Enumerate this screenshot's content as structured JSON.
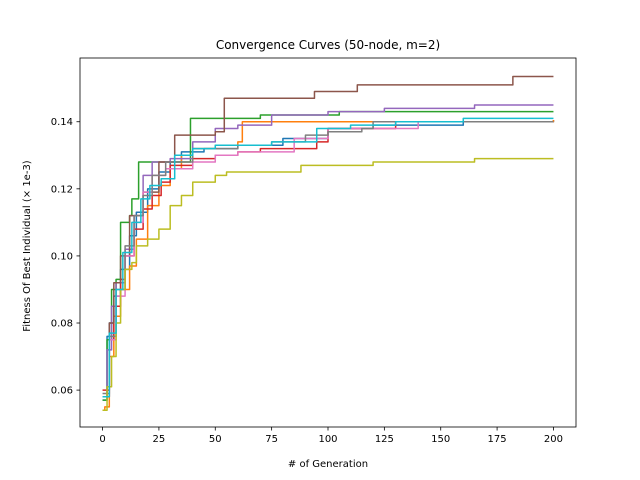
{
  "chart_data": {
    "type": "line",
    "title": "Convergence Curves (50-node, m=2)",
    "xlabel": "# of Generation",
    "ylabel": "Fitness Of Best Individual (× 1e-3)",
    "xlim": [
      -10,
      210
    ],
    "ylim": [
      0.049,
      0.159
    ],
    "xticks": [
      0,
      25,
      50,
      75,
      100,
      125,
      150,
      175,
      200
    ],
    "yticks": [
      0.06,
      0.08,
      0.1,
      0.12,
      0.14
    ],
    "ytick_labels": [
      "0.06",
      "0.08",
      "0.10",
      "0.12",
      "0.14"
    ],
    "grid": false,
    "legend": false,
    "series": [
      {
        "color": "#1f77b4",
        "points": [
          [
            0,
            0.057
          ],
          [
            2,
            0.076
          ],
          [
            3,
            0.08
          ],
          [
            5,
            0.088
          ],
          [
            8,
            0.096
          ],
          [
            12,
            0.106
          ],
          [
            15,
            0.113
          ],
          [
            20,
            0.12
          ],
          [
            25,
            0.125
          ],
          [
            30,
            0.128
          ],
          [
            35,
            0.131
          ],
          [
            45,
            0.132
          ],
          [
            60,
            0.133
          ],
          [
            80,
            0.135
          ],
          [
            100,
            0.138
          ],
          [
            120,
            0.139
          ],
          [
            160,
            0.14
          ],
          [
            200,
            0.1405
          ]
        ]
      },
      {
        "color": "#ff7f0e",
        "points": [
          [
            0,
            0.054
          ],
          [
            1,
            0.055
          ],
          [
            3,
            0.07
          ],
          [
            5,
            0.082
          ],
          [
            8,
            0.09
          ],
          [
            12,
            0.097
          ],
          [
            15,
            0.105
          ],
          [
            20,
            0.115
          ],
          [
            25,
            0.121
          ],
          [
            30,
            0.126
          ],
          [
            35,
            0.13
          ],
          [
            40,
            0.132
          ],
          [
            50,
            0.133
          ],
          [
            60,
            0.134
          ],
          [
            62,
            0.14
          ],
          [
            80,
            0.14
          ],
          [
            110,
            0.14
          ],
          [
            200,
            0.1405
          ]
        ]
      },
      {
        "color": "#2ca02c",
        "points": [
          [
            0,
            0.057
          ],
          [
            2,
            0.075
          ],
          [
            4,
            0.09
          ],
          [
            6,
            0.093
          ],
          [
            8,
            0.11
          ],
          [
            12,
            0.112
          ],
          [
            13,
            0.117
          ],
          [
            15,
            0.117
          ],
          [
            16,
            0.128
          ],
          [
            25,
            0.128
          ],
          [
            38,
            0.128
          ],
          [
            39,
            0.141
          ],
          [
            55,
            0.141
          ],
          [
            60,
            0.141
          ],
          [
            70,
            0.142
          ],
          [
            105,
            0.143
          ],
          [
            150,
            0.143
          ],
          [
            200,
            0.143
          ]
        ]
      },
      {
        "color": "#d62728",
        "points": [
          [
            0,
            0.06
          ],
          [
            3,
            0.075
          ],
          [
            5,
            0.085
          ],
          [
            8,
            0.093
          ],
          [
            10,
            0.1
          ],
          [
            14,
            0.108
          ],
          [
            18,
            0.114
          ],
          [
            22,
            0.118
          ],
          [
            26,
            0.122
          ],
          [
            30,
            0.127
          ],
          [
            40,
            0.129
          ],
          [
            50,
            0.13
          ],
          [
            60,
            0.131
          ],
          [
            70,
            0.132
          ],
          [
            90,
            0.132
          ],
          [
            95,
            0.134
          ],
          [
            100,
            0.138
          ],
          [
            130,
            0.14
          ],
          [
            200,
            0.14
          ]
        ]
      },
      {
        "color": "#9467bd",
        "points": [
          [
            0,
            0.058
          ],
          [
            2,
            0.072
          ],
          [
            4,
            0.085
          ],
          [
            6,
            0.092
          ],
          [
            10,
            0.102
          ],
          [
            14,
            0.112
          ],
          [
            18,
            0.124
          ],
          [
            22,
            0.128
          ],
          [
            30,
            0.129
          ],
          [
            40,
            0.134
          ],
          [
            50,
            0.138
          ],
          [
            60,
            0.139
          ],
          [
            75,
            0.142
          ],
          [
            90,
            0.142
          ],
          [
            100,
            0.143
          ],
          [
            125,
            0.144
          ],
          [
            165,
            0.145
          ],
          [
            200,
            0.145
          ]
        ]
      },
      {
        "color": "#8c564b",
        "points": [
          [
            0,
            0.058
          ],
          [
            3,
            0.08
          ],
          [
            5,
            0.092
          ],
          [
            8,
            0.1
          ],
          [
            12,
            0.112
          ],
          [
            18,
            0.119
          ],
          [
            25,
            0.128
          ],
          [
            32,
            0.136
          ],
          [
            40,
            0.136
          ],
          [
            50,
            0.137
          ],
          [
            54,
            0.147
          ],
          [
            70,
            0.147
          ],
          [
            92,
            0.147
          ],
          [
            94,
            0.149
          ],
          [
            112,
            0.149
          ],
          [
            113,
            0.151
          ],
          [
            180,
            0.151
          ],
          [
            182,
            0.1535
          ],
          [
            200,
            0.1535
          ]
        ]
      },
      {
        "color": "#e377c2",
        "points": [
          [
            0,
            0.058
          ],
          [
            3,
            0.075
          ],
          [
            6,
            0.088
          ],
          [
            10,
            0.1
          ],
          [
            14,
            0.11
          ],
          [
            18,
            0.119
          ],
          [
            22,
            0.124
          ],
          [
            28,
            0.126
          ],
          [
            40,
            0.128
          ],
          [
            50,
            0.13
          ],
          [
            60,
            0.131
          ],
          [
            75,
            0.131
          ],
          [
            85,
            0.135
          ],
          [
            100,
            0.138
          ],
          [
            120,
            0.138
          ],
          [
            140,
            0.14
          ],
          [
            200,
            0.14
          ]
        ]
      },
      {
        "color": "#7f7f7f",
        "points": [
          [
            0,
            0.059
          ],
          [
            3,
            0.076
          ],
          [
            6,
            0.09
          ],
          [
            10,
            0.103
          ],
          [
            14,
            0.112
          ],
          [
            18,
            0.118
          ],
          [
            22,
            0.124
          ],
          [
            28,
            0.128
          ],
          [
            40,
            0.132
          ],
          [
            50,
            0.132
          ],
          [
            60,
            0.133
          ],
          [
            75,
            0.134
          ],
          [
            85,
            0.134
          ],
          [
            90,
            0.136
          ],
          [
            100,
            0.137
          ],
          [
            115,
            0.138
          ],
          [
            120,
            0.14
          ],
          [
            200,
            0.14
          ]
        ]
      },
      {
        "color": "#bcbd22",
        "points": [
          [
            0,
            0.054
          ],
          [
            2,
            0.061
          ],
          [
            4,
            0.07
          ],
          [
            6,
            0.08
          ],
          [
            8,
            0.09
          ],
          [
            10,
            0.096
          ],
          [
            13,
            0.098
          ],
          [
            15,
            0.103
          ],
          [
            20,
            0.105
          ],
          [
            25,
            0.108
          ],
          [
            30,
            0.115
          ],
          [
            35,
            0.118
          ],
          [
            40,
            0.122
          ],
          [
            50,
            0.124
          ],
          [
            55,
            0.125
          ],
          [
            85,
            0.125
          ],
          [
            88,
            0.127
          ],
          [
            120,
            0.128
          ],
          [
            150,
            0.128
          ],
          [
            165,
            0.129
          ],
          [
            200,
            0.129
          ]
        ]
      },
      {
        "color": "#17becf",
        "points": [
          [
            0,
            0.058
          ],
          [
            3,
            0.077
          ],
          [
            6,
            0.09
          ],
          [
            9,
            0.101
          ],
          [
            13,
            0.11
          ],
          [
            17,
            0.117
          ],
          [
            21,
            0.121
          ],
          [
            26,
            0.123
          ],
          [
            32,
            0.13
          ],
          [
            40,
            0.132
          ],
          [
            50,
            0.133
          ],
          [
            60,
            0.133
          ],
          [
            75,
            0.134
          ],
          [
            85,
            0.134
          ],
          [
            95,
            0.138
          ],
          [
            110,
            0.139
          ],
          [
            130,
            0.14
          ],
          [
            160,
            0.141
          ],
          [
            200,
            0.141
          ]
        ]
      }
    ]
  }
}
